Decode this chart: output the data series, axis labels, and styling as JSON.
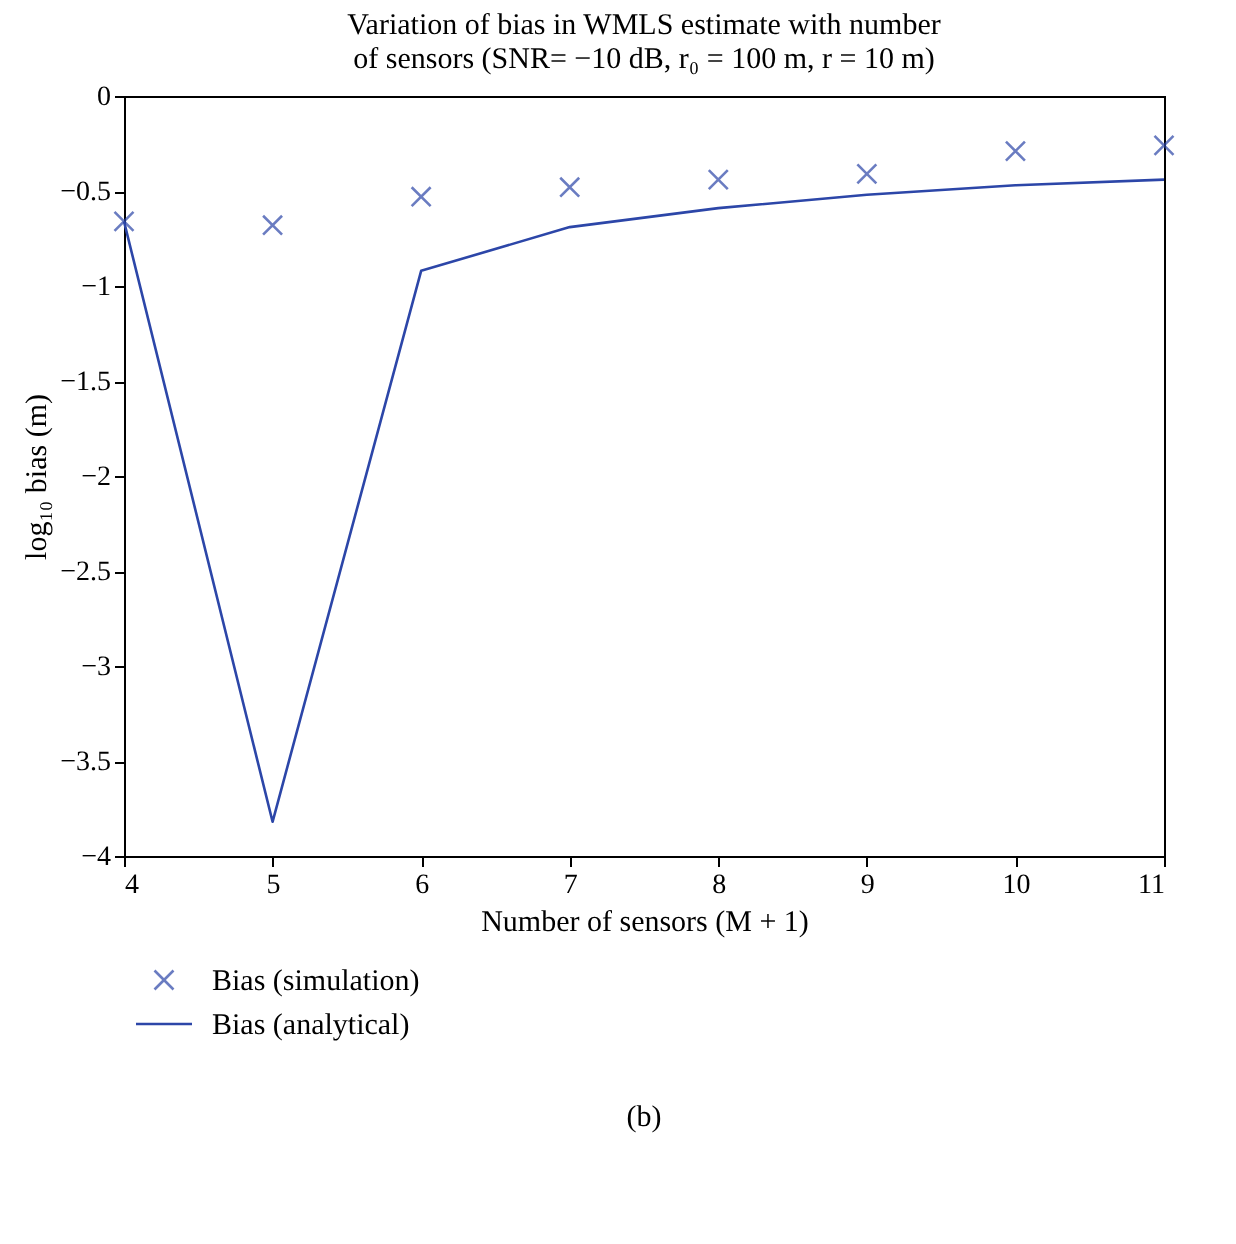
{
  "chart_data": {
    "type": "line",
    "title": [
      "Variation of bias in WMLS estimate with number",
      "of sensors (SNR= −10 dB, r₀ = 100 m, r = 10 m)"
    ],
    "xlabel": "Number of sensors (M + 1)",
    "ylabel": "log₁₀ bias (m)",
    "x": [
      4,
      5,
      6,
      7,
      8,
      9,
      10,
      11
    ],
    "series": [
      {
        "name": "Bias (simulation)",
        "type": "scatter",
        "marker": "cross",
        "color": "#2c46a8",
        "values": [
          -0.66,
          -0.68,
          -0.53,
          -0.48,
          -0.44,
          -0.41,
          -0.29,
          -0.26
        ]
      },
      {
        "name": "Bias (analytical)",
        "marker": "none",
        "color": "#2c46a8",
        "values": [
          -0.66,
          -3.82,
          -0.92,
          -0.69,
          -0.59,
          -0.52,
          -0.47,
          -0.44
        ]
      }
    ],
    "xlim": [
      4,
      11
    ],
    "xticks": [
      4,
      5,
      6,
      7,
      8,
      9,
      10,
      11
    ],
    "ylim": [
      -4,
      0
    ],
    "yticks": [
      -4,
      -3.5,
      -3,
      -2.5,
      -2,
      -1.5,
      -1,
      -0.5,
      0
    ],
    "grid": false,
    "legend": "bottom left",
    "annotations": [
      "(b)"
    ]
  }
}
